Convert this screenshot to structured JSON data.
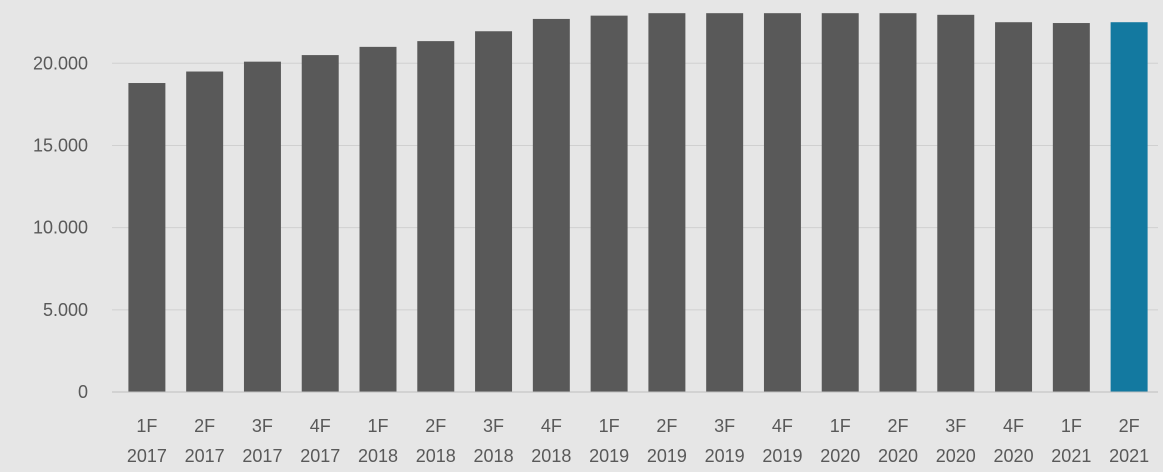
{
  "chart_data": {
    "type": "bar",
    "title": "",
    "xlabel": "",
    "ylabel": "",
    "ylim": [
      0,
      23000
    ],
    "yticks": [
      0,
      5000,
      10000,
      15000,
      20000
    ],
    "ytick_labels": [
      "0",
      "5.000",
      "10.000",
      "15.000",
      "20.000"
    ],
    "grid": true,
    "categories": [
      [
        "1F",
        "2017"
      ],
      [
        "2F",
        "2017"
      ],
      [
        "3F",
        "2017"
      ],
      [
        "4F",
        "2017"
      ],
      [
        "1F",
        "2018"
      ],
      [
        "2F",
        "2018"
      ],
      [
        "3F",
        "2018"
      ],
      [
        "4F",
        "2018"
      ],
      [
        "1F",
        "2019"
      ],
      [
        "2F",
        "2019"
      ],
      [
        "3F",
        "2019"
      ],
      [
        "4F",
        "2019"
      ],
      [
        "1F",
        "2020"
      ],
      [
        "2F",
        "2020"
      ],
      [
        "3F",
        "2020"
      ],
      [
        "4F",
        "2020"
      ],
      [
        "1F",
        "2021"
      ],
      [
        "2F",
        "2021"
      ]
    ],
    "values": [
      18800,
      19500,
      20100,
      20500,
      21000,
      21350,
      21950,
      22700,
      22900,
      23050,
      23050,
      23050,
      23050,
      23050,
      22950,
      22500,
      22450,
      22500
    ],
    "colors": {
      "default": "#595959",
      "highlight": "#1379a0"
    },
    "highlight_index": 17
  }
}
